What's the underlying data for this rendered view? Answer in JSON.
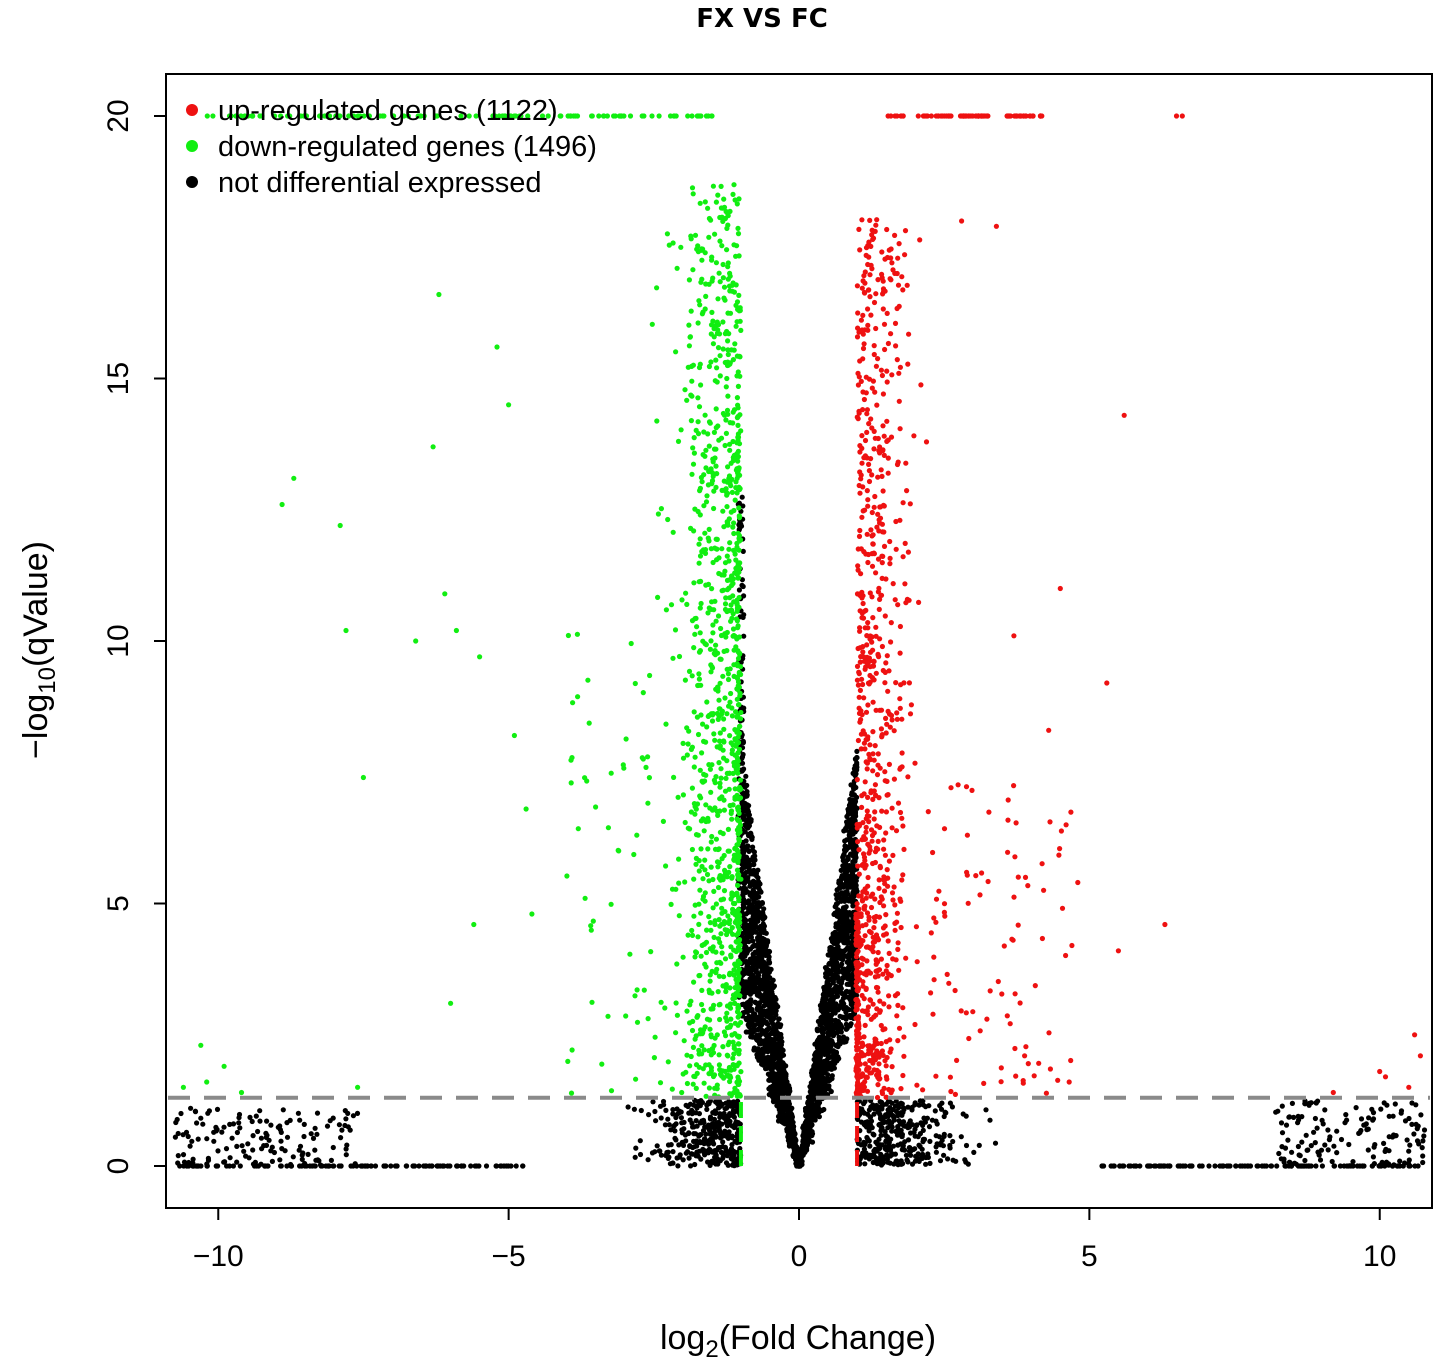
{
  "chart_data": {
    "type": "scatter",
    "title": "FX VS FC",
    "xlabel": {
      "pre": "log",
      "sub": "2",
      "post": "(Fold Change)"
    },
    "ylabel": {
      "pre": "−log",
      "sub": "10",
      "post": "(qValue)"
    },
    "xlim": [
      -10.9,
      10.9
    ],
    "ylim": [
      -0.8,
      20.8
    ],
    "xticks": [
      -10,
      -5,
      0,
      5,
      10
    ],
    "xtick_labels": [
      "−10",
      "−5",
      "0",
      "5",
      "10"
    ],
    "yticks": [
      0,
      5,
      10,
      15,
      20
    ],
    "ytick_labels": [
      "0",
      "5",
      "10",
      "15",
      "20"
    ],
    "grid": false,
    "legend_position": "top-left",
    "thresholds": {
      "log2fc": [
        -1,
        1
      ],
      "neg_log10_q": 1.3
    },
    "series": [
      {
        "name": "up-regulated genes (1122)",
        "color": "#ee1111",
        "count": 1122,
        "x_range": [
          1,
          10.9
        ],
        "y_range": [
          1.3,
          20
        ]
      },
      {
        "name": "down-regulated genes (1496)",
        "color": "#11ee11",
        "count": 1496,
        "x_range": [
          -10.9,
          -1
        ],
        "y_range": [
          1.3,
          20
        ]
      },
      {
        "name": "not differential expressed",
        "color": "#000000",
        "x_range": [
          -10.9,
          10.9
        ],
        "y_range": [
          0,
          13
        ]
      }
    ],
    "outliers": {
      "up": [
        [
          6.5,
          20
        ],
        [
          6.6,
          20
        ],
        [
          5.6,
          14.3
        ],
        [
          5.3,
          9.2
        ],
        [
          6.3,
          4.6
        ],
        [
          5.5,
          4.1
        ],
        [
          3.4,
          17.9
        ],
        [
          2.8,
          18
        ],
        [
          4.6,
          6.5
        ],
        [
          4.7,
          4.2
        ],
        [
          4.8,
          5.4
        ],
        [
          10.6,
          2.5
        ],
        [
          10.7,
          2.1
        ],
        [
          10.0,
          1.8
        ],
        [
          10.1,
          1.7
        ],
        [
          10.5,
          1.5
        ],
        [
          9.2,
          1.4
        ],
        [
          4.5,
          11
        ],
        [
          4.3,
          8.3
        ],
        [
          3.7,
          10.1
        ]
      ],
      "down": [
        [
          -8.9,
          12.6
        ],
        [
          -8.7,
          13.1
        ],
        [
          -7.9,
          12.2
        ],
        [
          -7.8,
          10.2
        ],
        [
          -7.5,
          7.4
        ],
        [
          -6.6,
          10.0
        ],
        [
          -6.3,
          13.7
        ],
        [
          -6.2,
          16.6
        ],
        [
          -6.1,
          10.9
        ],
        [
          -5.9,
          10.2
        ],
        [
          -5.5,
          9.7
        ],
        [
          -5.2,
          15.6
        ],
        [
          -5.0,
          14.5
        ],
        [
          -6.0,
          3.1
        ],
        [
          -5.6,
          4.6
        ],
        [
          -4.9,
          8.2
        ],
        [
          -4.7,
          6.8
        ],
        [
          -4.6,
          4.8
        ],
        [
          -10.3,
          2.3
        ],
        [
          -9.9,
          1.9
        ],
        [
          -10.2,
          1.6
        ],
        [
          -10.6,
          1.5
        ],
        [
          -9.6,
          1.4
        ],
        [
          -7.6,
          1.5
        ]
      ]
    }
  }
}
